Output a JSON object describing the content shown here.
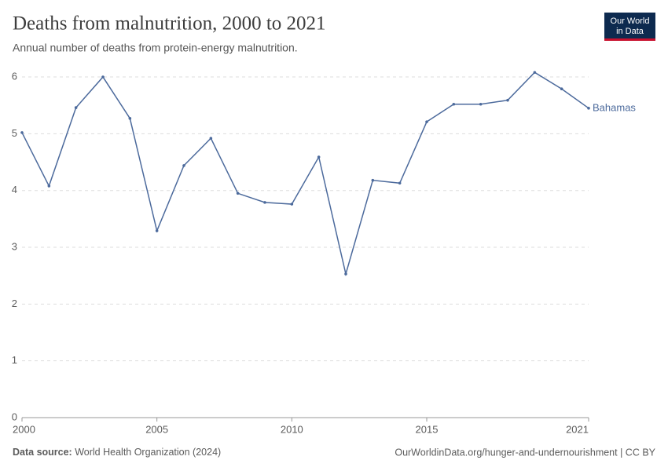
{
  "chart_data": {
    "type": "line",
    "title": "Deaths from malnutrition, 2000 to 2021",
    "subtitle": "Annual number of deaths from protein-energy malnutrition.",
    "x": [
      2000,
      2001,
      2002,
      2003,
      2004,
      2005,
      2006,
      2007,
      2008,
      2009,
      2010,
      2011,
      2012,
      2013,
      2014,
      2015,
      2016,
      2017,
      2018,
      2019,
      2020,
      2021
    ],
    "series": [
      {
        "name": "Bahamas",
        "color": "#4c6a9c",
        "values": [
          5.02,
          4.08,
          5.46,
          6.0,
          5.27,
          3.29,
          4.44,
          4.92,
          3.95,
          3.79,
          3.76,
          4.59,
          2.53,
          4.18,
          4.13,
          5.21,
          5.52,
          5.52,
          5.59,
          6.08,
          5.79,
          5.45
        ]
      }
    ],
    "xlim": [
      2000,
      2021
    ],
    "xticks": [
      2000,
      2005,
      2010,
      2015,
      2021
    ],
    "ylim": [
      0,
      6.1
    ],
    "yticks": [
      0,
      1,
      2,
      3,
      4,
      5,
      6
    ],
    "grid": true
  },
  "logo": {
    "line1": "Our World",
    "line2": "in Data"
  },
  "footer": {
    "source_label": "Data source:",
    "source": "World Health Organization (2024)",
    "right": "OurWorldinData.org/hunger-and-undernourishment | CC BY"
  }
}
